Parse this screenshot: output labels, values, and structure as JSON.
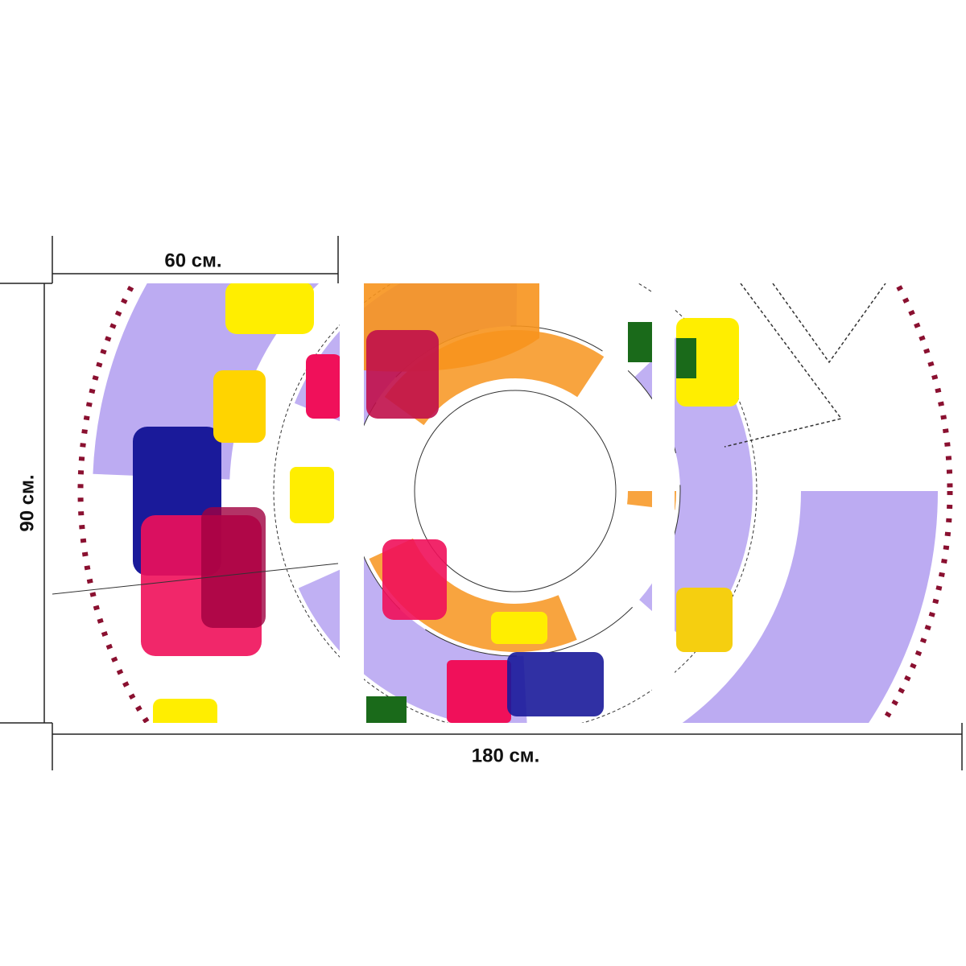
{
  "dimensions": {
    "panel_width": "60 см.",
    "height": "90 см.",
    "total_width": "180 см."
  }
}
